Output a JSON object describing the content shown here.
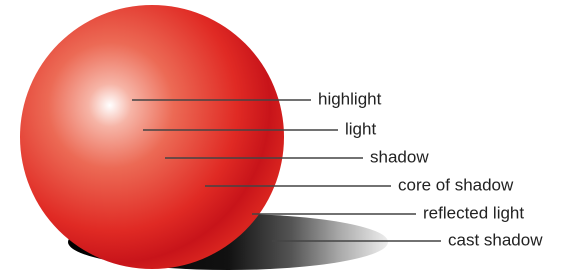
{
  "labels": [
    "highlight",
    "light",
    "shadow",
    "core of shadow",
    "reflected light",
    "cast shadow"
  ]
}
